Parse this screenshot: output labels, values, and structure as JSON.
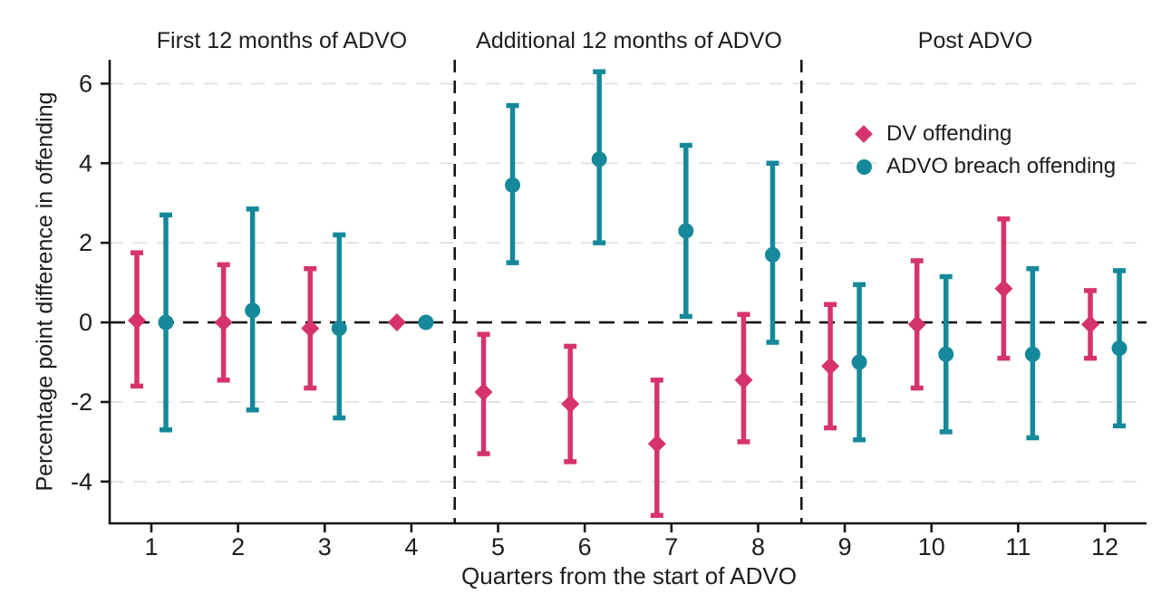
{
  "chart_data": {
    "type": "scatter",
    "title": "",
    "xlabel": "Quarters from the start of ADVO",
    "ylabel": "Percentage point difference in offending",
    "x": [
      1,
      2,
      3,
      4,
      5,
      6,
      7,
      8,
      9,
      10,
      11,
      12
    ],
    "xticks": [
      "1",
      "2",
      "3",
      "4",
      "5",
      "6",
      "7",
      "8",
      "9",
      "10",
      "11",
      "12"
    ],
    "yticks": [
      6,
      4,
      2,
      0,
      -2,
      -4
    ],
    "ylim": [
      -5.05,
      6.6
    ],
    "grid": "horizontal dashed gridlines at yticks; dashed black reference line at 0",
    "legend_position": "upper right panel",
    "panels": [
      {
        "label": "First 12 months of ADVO",
        "x_start": 1,
        "x_end": 4
      },
      {
        "label": "Additional 12 months of ADVO",
        "x_start": 5,
        "x_end": 8
      },
      {
        "label": "Post ADVO",
        "x_start": 9,
        "x_end": 12
      }
    ],
    "panel_separators_at_x": [
      4.5,
      8.5
    ],
    "zero_reference_line": 0,
    "series": [
      {
        "name": "DV offending",
        "marker": "diamond",
        "color": "#d6336e",
        "values": [
          0.05,
          0.0,
          -0.15,
          0.0,
          -1.75,
          -2.05,
          -3.05,
          -1.45,
          -1.1,
          -0.05,
          0.85,
          -0.05
        ],
        "ci_low": [
          -1.6,
          -1.45,
          -1.65,
          null,
          -3.3,
          -3.5,
          -4.85,
          -3.0,
          -2.65,
          -1.65,
          -0.9,
          -0.9
        ],
        "ci_high": [
          1.75,
          1.45,
          1.35,
          null,
          -0.3,
          -0.6,
          -1.45,
          0.2,
          0.45,
          1.55,
          2.6,
          0.8
        ]
      },
      {
        "name": "ADVO breach offending",
        "marker": "circle",
        "color": "#15899a",
        "values": [
          0.0,
          0.3,
          -0.15,
          0.0,
          3.45,
          4.1,
          2.3,
          1.7,
          -1.0,
          -0.8,
          -0.8,
          -0.65
        ],
        "ci_low": [
          -2.7,
          -2.2,
          -2.4,
          null,
          1.5,
          2.0,
          0.15,
          -0.5,
          -2.95,
          -2.75,
          -2.9,
          -2.6
        ],
        "ci_high": [
          2.7,
          2.85,
          2.2,
          null,
          5.45,
          6.3,
          4.45,
          4.0,
          0.95,
          1.15,
          1.35,
          1.3
        ]
      }
    ]
  },
  "colors": {
    "axis": "#14171a",
    "text": "#1d1d1d",
    "gridline": "#e3e3e3"
  }
}
